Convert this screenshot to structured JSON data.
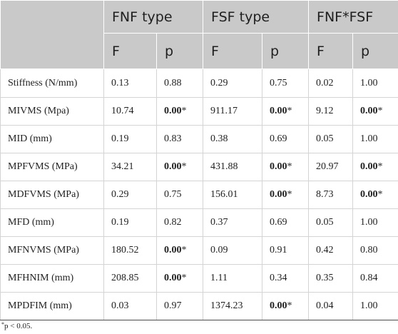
{
  "header": {
    "groups": [
      "FNF type",
      "FSF type",
      "FNF*FSF"
    ],
    "subcolumns": [
      "F",
      "p",
      "F",
      "p",
      "F",
      "p"
    ]
  },
  "rows": [
    {
      "label": "Stiffness (N/mm)",
      "cells": [
        {
          "v": "0.13"
        },
        {
          "v": "0.88"
        },
        {
          "v": "0.29"
        },
        {
          "v": "0.75"
        },
        {
          "v": "0.02"
        },
        {
          "v": "1.00"
        }
      ]
    },
    {
      "label": "MIVMS (Mpa)",
      "cells": [
        {
          "v": "10.74"
        },
        {
          "v": "0.00",
          "sig": "*"
        },
        {
          "v": "911.17"
        },
        {
          "v": "0.00",
          "sig": "*"
        },
        {
          "v": "9.12"
        },
        {
          "v": "0.00",
          "sig": "*"
        }
      ]
    },
    {
      "label": "MID (mm)",
      "cells": [
        {
          "v": "0.19"
        },
        {
          "v": "0.83"
        },
        {
          "v": "0.38"
        },
        {
          "v": "0.69"
        },
        {
          "v": "0.05"
        },
        {
          "v": "1.00"
        }
      ]
    },
    {
      "label": "MPFVMS (MPa)",
      "cells": [
        {
          "v": "34.21"
        },
        {
          "v": "0.00",
          "sig": "*"
        },
        {
          "v": "431.88"
        },
        {
          "v": "0.00",
          "sig": "*"
        },
        {
          "v": "20.97"
        },
        {
          "v": "0.00",
          "sig": "*"
        }
      ]
    },
    {
      "label": "MDFVMS (MPa)",
      "cells": [
        {
          "v": "0.29"
        },
        {
          "v": "0.75"
        },
        {
          "v": "156.01"
        },
        {
          "v": "0.00",
          "sig": "*"
        },
        {
          "v": "8.73"
        },
        {
          "v": "0.00",
          "sig": "*"
        }
      ]
    },
    {
      "label": "MFD (mm)",
      "cells": [
        {
          "v": "0.19"
        },
        {
          "v": "0.82"
        },
        {
          "v": "0.37"
        },
        {
          "v": "0.69"
        },
        {
          "v": "0.05"
        },
        {
          "v": "1.00"
        }
      ]
    },
    {
      "label": "MFNVMS (MPa)",
      "cells": [
        {
          "v": "180.52"
        },
        {
          "v": "0.00",
          "sig": "*"
        },
        {
          "v": "0.09"
        },
        {
          "v": "0.91"
        },
        {
          "v": "0.42"
        },
        {
          "v": "0.80"
        }
      ]
    },
    {
      "label": "MFHNIM (mm)",
      "cells": [
        {
          "v": "208.85"
        },
        {
          "v": "0.00",
          "sig": "*"
        },
        {
          "v": "1.11"
        },
        {
          "v": "0.34"
        },
        {
          "v": "0.35"
        },
        {
          "v": "0.84"
        }
      ]
    },
    {
      "label": "MPDFIM (mm)",
      "cells": [
        {
          "v": "0.03"
        },
        {
          "v": "0.97"
        },
        {
          "v": "1374.23"
        },
        {
          "v": "0.00",
          "sig": "*"
        },
        {
          "v": "0.04"
        },
        {
          "v": "1.00"
        }
      ]
    }
  ],
  "footnote": {
    "marker": "*",
    "text": "p < 0.05."
  }
}
